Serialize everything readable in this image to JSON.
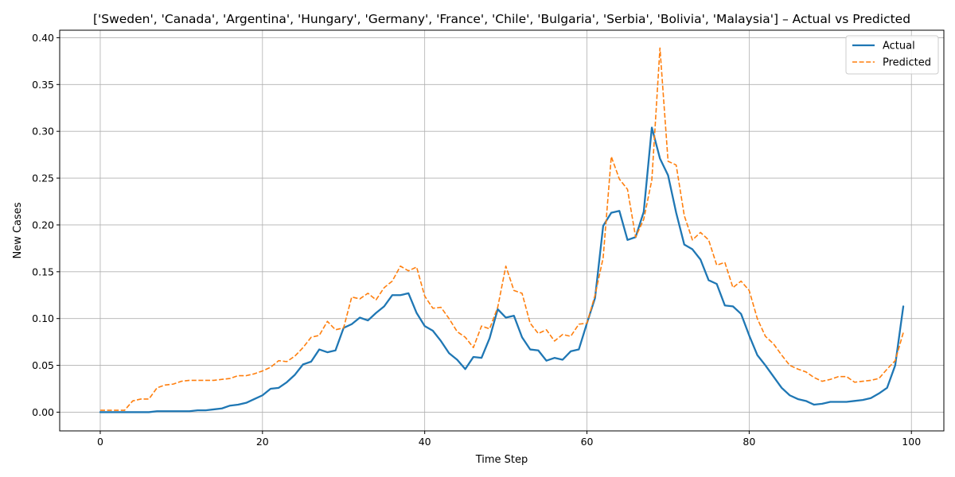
{
  "chart_data": {
    "type": "line",
    "title": "['Sweden', 'Canada', 'Argentina', 'Hungary', 'Germany', 'France', 'Chile', 'Bulgaria', 'Serbia', 'Bolivia', 'Malaysia'] – Actual vs Predicted",
    "xlabel": "Time Step",
    "ylabel": "New Cases",
    "xlim": [
      -5,
      104
    ],
    "ylim": [
      -0.02,
      0.408
    ],
    "x_ticks": [
      "0",
      "20",
      "40",
      "60",
      "80",
      "100"
    ],
    "y_ticks": [
      "0.00",
      "0.05",
      "0.10",
      "0.15",
      "0.20",
      "0.25",
      "0.30",
      "0.35",
      "0.40"
    ],
    "grid": true,
    "legend_position": "top-right",
    "x": [
      0,
      1,
      2,
      3,
      4,
      5,
      6,
      7,
      8,
      9,
      10,
      11,
      12,
      13,
      14,
      15,
      16,
      17,
      18,
      19,
      20,
      21,
      22,
      23,
      24,
      25,
      26,
      27,
      28,
      29,
      30,
      31,
      32,
      33,
      34,
      35,
      36,
      37,
      38,
      39,
      40,
      41,
      42,
      43,
      44,
      45,
      46,
      47,
      48,
      49,
      50,
      51,
      52,
      53,
      54,
      55,
      56,
      57,
      58,
      59,
      60,
      61,
      62,
      63,
      64,
      65,
      66,
      67,
      68,
      69,
      70,
      71,
      72,
      73,
      74,
      75,
      76,
      77,
      78,
      79,
      80,
      81,
      82,
      83,
      84,
      85,
      86,
      87,
      88,
      89,
      90,
      91,
      92,
      93,
      94,
      95,
      96,
      97,
      98,
      99
    ],
    "series": [
      {
        "name": "Actual",
        "color": "#1f77b4",
        "style": "solid",
        "values": [
          0.0,
          0.0,
          0.0,
          0.0,
          0.0,
          0.0,
          0.0,
          0.001,
          0.001,
          0.001,
          0.001,
          0.001,
          0.002,
          0.002,
          0.003,
          0.004,
          0.007,
          0.008,
          0.01,
          0.014,
          0.018,
          0.025,
          0.026,
          0.032,
          0.04,
          0.051,
          0.054,
          0.067,
          0.064,
          0.066,
          0.09,
          0.094,
          0.101,
          0.098,
          0.106,
          0.113,
          0.125,
          0.125,
          0.127,
          0.106,
          0.092,
          0.087,
          0.076,
          0.063,
          0.056,
          0.046,
          0.059,
          0.058,
          0.079,
          0.11,
          0.101,
          0.103,
          0.08,
          0.067,
          0.066,
          0.055,
          0.058,
          0.056,
          0.065,
          0.067,
          0.095,
          0.122,
          0.199,
          0.213,
          0.215,
          0.184,
          0.187,
          0.214,
          0.304,
          0.271,
          0.253,
          0.213,
          0.179,
          0.174,
          0.163,
          0.141,
          0.137,
          0.114,
          0.113,
          0.105,
          0.082,
          0.061,
          0.05,
          0.038,
          0.026,
          0.018,
          0.014,
          0.012,
          0.008,
          0.009,
          0.011,
          0.011,
          0.011,
          0.012,
          0.013,
          0.015,
          0.02,
          0.026,
          0.05,
          0.113
        ]
      },
      {
        "name": "Predicted",
        "color": "#ff7f0e",
        "style": "dashed",
        "values": [
          0.002,
          0.002,
          0.002,
          0.002,
          0.012,
          0.014,
          0.014,
          0.026,
          0.029,
          0.03,
          0.033,
          0.034,
          0.034,
          0.034,
          0.034,
          0.035,
          0.036,
          0.039,
          0.039,
          0.041,
          0.044,
          0.048,
          0.055,
          0.054,
          0.06,
          0.069,
          0.08,
          0.082,
          0.097,
          0.088,
          0.09,
          0.123,
          0.121,
          0.127,
          0.12,
          0.133,
          0.14,
          0.156,
          0.151,
          0.155,
          0.124,
          0.111,
          0.112,
          0.1,
          0.086,
          0.08,
          0.069,
          0.092,
          0.089,
          0.112,
          0.156,
          0.13,
          0.127,
          0.095,
          0.084,
          0.088,
          0.076,
          0.083,
          0.081,
          0.094,
          0.095,
          0.125,
          0.165,
          0.273,
          0.249,
          0.238,
          0.187,
          0.206,
          0.248,
          0.389,
          0.268,
          0.264,
          0.21,
          0.184,
          0.192,
          0.184,
          0.157,
          0.16,
          0.133,
          0.14,
          0.13,
          0.1,
          0.081,
          0.073,
          0.061,
          0.05,
          0.046,
          0.043,
          0.037,
          0.033,
          0.035,
          0.038,
          0.038,
          0.032,
          0.033,
          0.034,
          0.036,
          0.046,
          0.055,
          0.085
        ]
      }
    ]
  }
}
